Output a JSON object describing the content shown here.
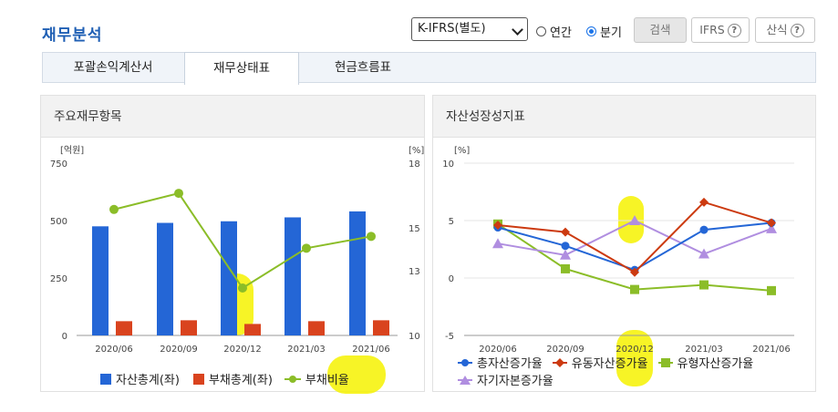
{
  "header": {
    "title": "재무분석",
    "select_value": "K-IFRS(별도)",
    "radio_annual": "연간",
    "radio_quarter": "분기",
    "radio_selected": "분기",
    "search_button": "검색",
    "ifrs_button": "IFRS",
    "formula_button": "산식",
    "help_glyph": "?"
  },
  "tabs": [
    {
      "label": "포괄손익계산서",
      "active": false
    },
    {
      "label": "재무상태표",
      "active": true
    },
    {
      "label": "현금흐름표",
      "active": false
    }
  ],
  "panels": {
    "left_title": "주요재무항목",
    "right_title": "자산성장성지표"
  },
  "colors": {
    "blue": "#2466d6",
    "red": "#d9431e",
    "green": "#8bbd28",
    "orange_red": "#cc3a10",
    "purple": "#b08ee0",
    "highlight": "#f6f200"
  },
  "chart_data": [
    {
      "type": "bar",
      "categories": [
        "2020/06",
        "2020/09",
        "2020/12",
        "2021/03",
        "2021/06"
      ],
      "series": [
        {
          "name": "자산총계(좌)",
          "type": "bar",
          "axis": "left",
          "values": [
            475,
            490,
            497,
            514,
            540
          ]
        },
        {
          "name": "부채총계(좌)",
          "type": "bar",
          "axis": "left",
          "values": [
            62,
            66,
            50,
            62,
            66
          ]
        },
        {
          "name": "부채비율",
          "type": "line",
          "axis": "right",
          "values": [
            15.85,
            16.6,
            12.2,
            14.05,
            14.6
          ]
        }
      ],
      "y_left": {
        "unit": "[억원]",
        "ylim": [
          0,
          750
        ],
        "ticks": [
          0,
          250,
          500,
          750
        ]
      },
      "y_right": {
        "unit": "[%]",
        "ylim": [
          10,
          18
        ],
        "ticks": [
          10,
          13,
          15,
          18
        ]
      },
      "grid": false,
      "legend": "bottom"
    },
    {
      "type": "line",
      "categories": [
        "2020/06",
        "2020/09",
        "2020/12",
        "2021/03",
        "2021/06"
      ],
      "series": [
        {
          "name": "총자산증가율",
          "marker": "circle",
          "values": [
            4.4,
            2.8,
            0.7,
            4.2,
            4.8
          ]
        },
        {
          "name": "유동자산증가율",
          "marker": "diamond",
          "values": [
            4.6,
            4.0,
            0.5,
            6.6,
            4.8
          ]
        },
        {
          "name": "유형자산증가율",
          "marker": "square",
          "values": [
            4.7,
            0.8,
            -1.0,
            -0.6,
            -1.1
          ]
        },
        {
          "name": "자기자본증가율",
          "marker": "triangle",
          "values": [
            3.0,
            2.0,
            5.0,
            2.1,
            4.3
          ]
        }
      ],
      "y": {
        "unit": "[%]",
        "ylim": [
          -5,
          10
        ],
        "ticks": [
          -5,
          0,
          5,
          10
        ]
      },
      "grid": true,
      "legend": "bottom"
    }
  ]
}
